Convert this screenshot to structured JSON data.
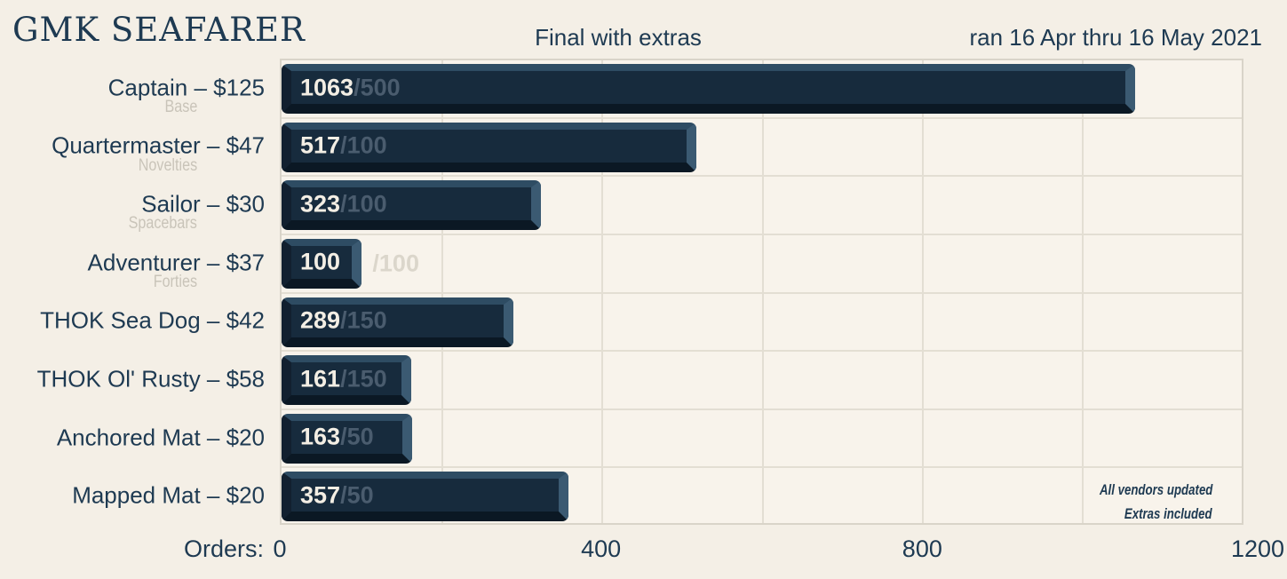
{
  "header": {
    "title": "GMK SEAFARER",
    "status": "Final with extras",
    "date_range": "ran 16 Apr thru 16 May 2021"
  },
  "axis": {
    "label": "Orders:"
  },
  "note": {
    "line1": "All vendors updated",
    "line2": "Extras included"
  },
  "colors": {
    "page_background": "#f4efe6",
    "plot_background": "#f8f3eb",
    "gridline": "#e3ded3",
    "plot_border": "#d9d4c9",
    "text_navy": "#1e3a52",
    "sublabel_gray": "#c9c4b9",
    "bar_face": "#172b3d",
    "bar_bevel_top": "#2e4c63",
    "bar_bevel_right": "#3b5a72",
    "bar_bevel_bottom": "#0b1824",
    "bar_bevel_left": "#12202f",
    "bar_value_text": "#f3eee4",
    "bar_goal_text": "#4a5c6e",
    "goal_outside_text": "#dbd6cb"
  },
  "chart_data": {
    "type": "bar",
    "orientation": "horizontal",
    "title": "GMK SEAFARER",
    "subtitle": "Final with extras",
    "annotation": "ran 16 Apr thru 16 May 2021",
    "footnote": [
      "All vendors updated",
      "Extras included"
    ],
    "xlabel": "Orders:",
    "xlim": [
      0,
      1200
    ],
    "x_ticks": [
      0,
      400,
      800,
      1200
    ],
    "grid_step": 200,
    "grid": true,
    "categories": [
      "Captain – $125",
      "Quartermaster – $47",
      "Sailor – $30",
      "Adventurer – $37",
      "THOK Sea Dog – $42",
      "THOK Ol' Rusty – $58",
      "Anchored Mat – $20",
      "Mapped Mat – $20"
    ],
    "sublabels": [
      "Base",
      "Novelties",
      "Spacebars",
      "Forties",
      "",
      "",
      "",
      ""
    ],
    "values": [
      1063,
      517,
      323,
      100,
      289,
      161,
      163,
      357
    ],
    "goals": [
      500,
      100,
      100,
      100,
      150,
      150,
      50,
      50
    ]
  }
}
